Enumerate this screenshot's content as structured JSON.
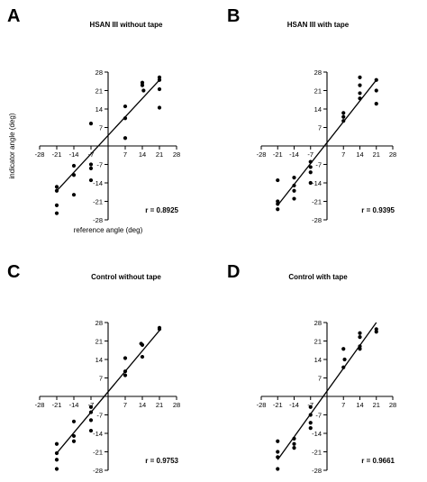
{
  "chart_data": [
    {
      "type": "scatter",
      "panel_label": "A",
      "title": "HSAN III without tape",
      "xlabel": "reference angle (deg)",
      "ylabel": "indicator angle (deg)",
      "xlim": [
        -28,
        28
      ],
      "ylim": [
        -28,
        28
      ],
      "ticks": [
        -28,
        -21,
        -14,
        -7,
        7,
        14,
        21,
        28
      ],
      "r_label": "r = 0.8925",
      "fit": {
        "x": [
          -21,
          21
        ],
        "y": [
          -17,
          25
        ]
      },
      "points": [
        {
          "x": -21,
          "y": -15.5
        },
        {
          "x": -21,
          "y": -17
        },
        {
          "x": -21,
          "y": -22.5
        },
        {
          "x": -21,
          "y": -25.5
        },
        {
          "x": -14,
          "y": -7.5
        },
        {
          "x": -14,
          "y": -11
        },
        {
          "x": -14,
          "y": -18.5
        },
        {
          "x": -7,
          "y": 8.5
        },
        {
          "x": -7,
          "y": -7
        },
        {
          "x": -7,
          "y": -8.5
        },
        {
          "x": -7,
          "y": -13
        },
        {
          "x": 7,
          "y": 15
        },
        {
          "x": 7,
          "y": 10.5
        },
        {
          "x": 7,
          "y": 3
        },
        {
          "x": 14,
          "y": 24
        },
        {
          "x": 14,
          "y": 23
        },
        {
          "x": 14.5,
          "y": 21
        },
        {
          "x": 21,
          "y": 26
        },
        {
          "x": 21,
          "y": 25
        },
        {
          "x": 21,
          "y": 21.5
        },
        {
          "x": 21,
          "y": 14.5
        }
      ]
    },
    {
      "type": "scatter",
      "panel_label": "B",
      "title": "HSAN III with tape",
      "xlabel": "",
      "ylabel": "",
      "xlim": [
        -28,
        28
      ],
      "ylim": [
        -28,
        28
      ],
      "ticks": [
        -28,
        -21,
        -14,
        -7,
        7,
        14,
        21,
        28
      ],
      "r_label": "r = 0.9395",
      "fit": {
        "x": [
          -21,
          21
        ],
        "y": [
          -22.5,
          25
        ]
      },
      "points": [
        {
          "x": -21,
          "y": -13
        },
        {
          "x": -21,
          "y": -21
        },
        {
          "x": -21,
          "y": -22
        },
        {
          "x": -21,
          "y": -24
        },
        {
          "x": -14,
          "y": -12
        },
        {
          "x": -14,
          "y": -15
        },
        {
          "x": -14,
          "y": -17
        },
        {
          "x": -14,
          "y": -20
        },
        {
          "x": -7,
          "y": -6
        },
        {
          "x": -7,
          "y": -8
        },
        {
          "x": -7,
          "y": -10
        },
        {
          "x": -7,
          "y": -14
        },
        {
          "x": 7,
          "y": 12.5
        },
        {
          "x": 7,
          "y": 11
        },
        {
          "x": 7,
          "y": 9.5
        },
        {
          "x": 14,
          "y": 26
        },
        {
          "x": 14,
          "y": 23
        },
        {
          "x": 14,
          "y": 20
        },
        {
          "x": 14,
          "y": 18
        },
        {
          "x": 21,
          "y": 25
        },
        {
          "x": 21,
          "y": 21
        },
        {
          "x": 21,
          "y": 16
        }
      ]
    },
    {
      "type": "scatter",
      "panel_label": "C",
      "title": "Control without tape",
      "xlabel": "",
      "ylabel": "",
      "xlim": [
        -28,
        28
      ],
      "ylim": [
        -28,
        28
      ],
      "ticks": [
        -28,
        -21,
        -14,
        -7,
        7,
        14,
        21,
        28
      ],
      "r_label": "r = 0.9753",
      "fit": {
        "x": [
          -21,
          21
        ],
        "y": [
          -21.5,
          25
        ]
      },
      "points": [
        {
          "x": -21,
          "y": -18
        },
        {
          "x": -21,
          "y": -21.5
        },
        {
          "x": -21,
          "y": -24
        },
        {
          "x": -21,
          "y": -27.5
        },
        {
          "x": -14,
          "y": -9.5
        },
        {
          "x": -14,
          "y": -15
        },
        {
          "x": -14,
          "y": -17
        },
        {
          "x": -7,
          "y": -4
        },
        {
          "x": -7,
          "y": -6
        },
        {
          "x": -7,
          "y": -9
        },
        {
          "x": -7,
          "y": -13
        },
        {
          "x": 7,
          "y": 14.5
        },
        {
          "x": 7,
          "y": 9.5
        },
        {
          "x": 7,
          "y": 8
        },
        {
          "x": 13.5,
          "y": 20
        },
        {
          "x": 14,
          "y": 19.5
        },
        {
          "x": 14,
          "y": 15
        },
        {
          "x": 21,
          "y": 26
        },
        {
          "x": 21,
          "y": 25.5
        }
      ]
    },
    {
      "type": "scatter",
      "panel_label": "D",
      "title": "Control with tape",
      "xlabel": "",
      "ylabel": "",
      "xlim": [
        -28,
        28
      ],
      "ylim": [
        -28,
        28
      ],
      "ticks": [
        -28,
        -21,
        -14,
        -7,
        7,
        14,
        21,
        28
      ],
      "r_label": "r = 0.9661",
      "fit": {
        "x": [
          -21,
          21
        ],
        "y": [
          -24,
          28
        ]
      },
      "points": [
        {
          "x": -21,
          "y": -17
        },
        {
          "x": -21,
          "y": -21
        },
        {
          "x": -21,
          "y": -23
        },
        {
          "x": -21,
          "y": -27.5
        },
        {
          "x": -14,
          "y": -16
        },
        {
          "x": -14,
          "y": -18
        },
        {
          "x": -14,
          "y": -19.5
        },
        {
          "x": -7,
          "y": -4
        },
        {
          "x": -7,
          "y": -7
        },
        {
          "x": -7,
          "y": -10
        },
        {
          "x": -7,
          "y": -12
        },
        {
          "x": 7,
          "y": 18
        },
        {
          "x": 7.5,
          "y": 14
        },
        {
          "x": 7,
          "y": 11
        },
        {
          "x": 14,
          "y": 24
        },
        {
          "x": 14,
          "y": 22.5
        },
        {
          "x": 14,
          "y": 19
        },
        {
          "x": 14,
          "y": 18
        },
        {
          "x": 21,
          "y": 25.5
        },
        {
          "x": 21,
          "y": 24.5
        }
      ]
    }
  ]
}
